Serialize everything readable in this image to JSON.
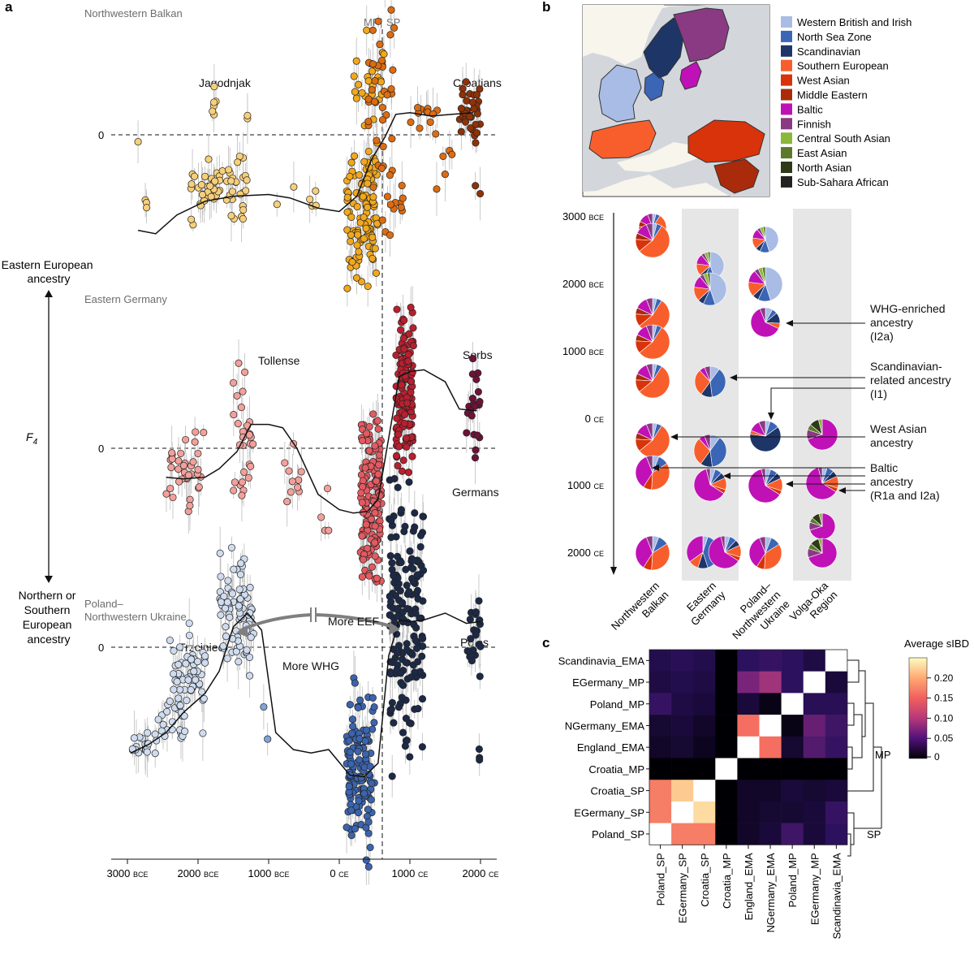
{
  "panels": {
    "a": "a",
    "b": "b",
    "c": "c"
  },
  "panel_a": {
    "regions": [
      "Northwestern Balkan",
      "Eastern Germany",
      "Poland–\nNorthwestern Ukraine"
    ],
    "zero_label": "0",
    "divider": {
      "left": "MP",
      "right": "SP"
    },
    "y_axis": {
      "title": "F",
      "title_sub": "4",
      "top": "Eastern European\nancestry",
      "bottom": "Northern or\nSouthern\nEuropean\nancestry"
    },
    "group_labels": {
      "balkan": [
        "Jagodnjak",
        "Croatians"
      ],
      "germany": [
        "Tollense",
        "Sorbs",
        "Germans"
      ],
      "poland": [
        "Trzciniec",
        "Poles"
      ]
    },
    "annotations": {
      "more_eef": "More EEF",
      "more_whg": "More WHG"
    },
    "x_ticks": [
      {
        "num": "3000",
        "era": "BCE",
        "year": -3000
      },
      {
        "num": "2000",
        "era": "BCE",
        "year": -2000
      },
      {
        "num": "1000",
        "era": "BCE",
        "year": -1000
      },
      {
        "num": "0",
        "era": "CE",
        "year": 0
      },
      {
        "num": "1000",
        "era": "CE",
        "year": 1000
      },
      {
        "num": "2000",
        "era": "CE",
        "year": 2000
      }
    ],
    "colors": {
      "balkan": [
        "#f7cf7a",
        "#f2a81d",
        "#dc6c12",
        "#8f3208"
      ],
      "germany": [
        "#f3a09a",
        "#e35a61",
        "#b8202f",
        "#6e1238"
      ],
      "poland": [
        "#cfdcef",
        "#7fa3d6",
        "#3c64ae",
        "#1c2a47"
      ]
    },
    "trends": {
      "balkan": {
        "x": [
          -2850,
          -2600,
          -2300,
          -1900,
          -1500,
          -1000,
          -700,
          -300,
          0,
          250,
          450,
          650,
          800,
          1000,
          1300,
          1600,
          1900
        ],
        "y": [
          -0.56,
          -0.58,
          -0.47,
          -0.39,
          -0.36,
          -0.35,
          -0.37,
          -0.43,
          -0.45,
          -0.36,
          -0.15,
          -0.01,
          0.12,
          0.13,
          0.11,
          0.12,
          0.13
        ]
      },
      "germany": {
        "x": [
          -2450,
          -2200,
          -1900,
          -1700,
          -1450,
          -1250,
          -1000,
          -800,
          -600,
          -300,
          0,
          200,
          400,
          550,
          700,
          850,
          1000,
          1200,
          1500,
          1700,
          1950
        ],
        "y": [
          -0.17,
          -0.18,
          -0.17,
          -0.12,
          -0.02,
          0.14,
          0.14,
          0.12,
          0.0,
          -0.27,
          -0.36,
          -0.38,
          -0.37,
          -0.3,
          0.06,
          0.42,
          0.45,
          0.46,
          0.39,
          0.23,
          0.22
        ]
      },
      "poland": {
        "x": [
          -2950,
          -2700,
          -2450,
          -2200,
          -1900,
          -1700,
          -1500,
          -1300,
          -1100,
          -900,
          -650,
          -400,
          -150,
          150,
          350,
          550,
          700,
          850,
          1000,
          1200,
          1500,
          1800,
          2000
        ],
        "y": [
          -0.62,
          -0.57,
          -0.5,
          -0.38,
          -0.27,
          -0.14,
          0.12,
          0.2,
          0.1,
          -0.5,
          -0.6,
          -0.62,
          -0.6,
          -0.75,
          -0.76,
          -0.68,
          -0.05,
          0.16,
          0.15,
          0.16,
          0.2,
          0.14,
          0.15
        ]
      }
    }
  },
  "panel_b": {
    "legend": [
      {
        "name": "Western British and Irish",
        "color": "#a9bce6"
      },
      {
        "name": "North Sea Zone",
        "color": "#3b65b5"
      },
      {
        "name": "Scandinavian",
        "color": "#1e3568"
      },
      {
        "name": "Southern European",
        "color": "#f85e2b"
      },
      {
        "name": "West Asian",
        "color": "#d8330a"
      },
      {
        "name": "Middle Eastern",
        "color": "#aa2a0c"
      },
      {
        "name": "Baltic",
        "color": "#c011b7"
      },
      {
        "name": "Finnish",
        "color": "#8a3a82"
      },
      {
        "name": "Central South Asian",
        "color": "#8bb73b"
      },
      {
        "name": "East Asian",
        "color": "#5a7a2a"
      },
      {
        "name": "North Asian",
        "color": "#2e3a18"
      },
      {
        "name": "Sub-Sahara African",
        "color": "#222222"
      }
    ],
    "y_ticks": [
      {
        "num": "3000",
        "era": "BCE"
      },
      {
        "num": "2000",
        "era": "BCE"
      },
      {
        "num": "1000",
        "era": "BCE"
      },
      {
        "num": "0",
        "era": "CE"
      },
      {
        "num": "1000",
        "era": "CE"
      },
      {
        "num": "2000",
        "era": "CE"
      }
    ],
    "columns": [
      "Northwestern\nBalkan",
      "Eastern\nGermany",
      "Poland–\nNorthwestern\nUkraine",
      "Volga-Oka\nRegion"
    ],
    "annotations": [
      "WHG-enriched\nancestry\n(I2a)",
      "Scandinavian-\nrelated ancestry\n(I1)",
      "West Asian\nancestry",
      "Baltic\nancestry\n(R1a and I2a)"
    ]
  },
  "panel_c": {
    "legend_title": "Average sIBD",
    "legend_ticks": [
      "0.20",
      "0.15",
      "0.10",
      "0.05",
      "0"
    ],
    "rows": [
      "Scandinavia_EMA",
      "EGermany_MP",
      "Poland_MP",
      "NGermany_EMA",
      "England_EMA",
      "Croatia_MP",
      "Croatia_SP",
      "EGermany_SP",
      "Poland_SP"
    ],
    "cols": [
      "Poland_SP",
      "EGermany_SP",
      "Croatia_SP",
      "Croatia_MP",
      "England_EMA",
      "NGermany_EMA",
      "Poland_MP",
      "EGermany_MP",
      "Scandinavia_EMA"
    ],
    "values": [
      [
        0.04,
        0.045,
        0.04,
        0.0,
        0.05,
        0.055,
        0.05,
        0.035,
        0.5
      ],
      [
        0.035,
        0.04,
        0.035,
        0.0,
        0.09,
        0.11,
        0.05,
        0.5,
        0.03
      ],
      [
        0.055,
        0.035,
        0.03,
        0.0,
        0.03,
        0.01,
        0.5,
        0.045,
        0.045
      ],
      [
        0.025,
        0.03,
        0.02,
        0.0,
        0.16,
        0.5,
        0.01,
        0.08,
        0.06
      ],
      [
        0.02,
        0.025,
        0.015,
        0.0,
        0.5,
        0.16,
        0.025,
        0.07,
        0.055
      ],
      [
        0.0,
        0.0,
        0.0,
        0.5,
        0.0,
        0.0,
        0.0,
        0.0,
        0.0
      ],
      [
        0.17,
        0.22,
        0.5,
        0.0,
        0.02,
        0.02,
        0.03,
        0.025,
        0.03
      ],
      [
        0.17,
        0.5,
        0.23,
        0.0,
        0.02,
        0.025,
        0.025,
        0.03,
        0.055
      ],
      [
        0.5,
        0.17,
        0.17,
        0.0,
        0.02,
        0.03,
        0.06,
        0.03,
        0.05
      ]
    ],
    "clusters": [
      "MP",
      "SP"
    ]
  }
}
